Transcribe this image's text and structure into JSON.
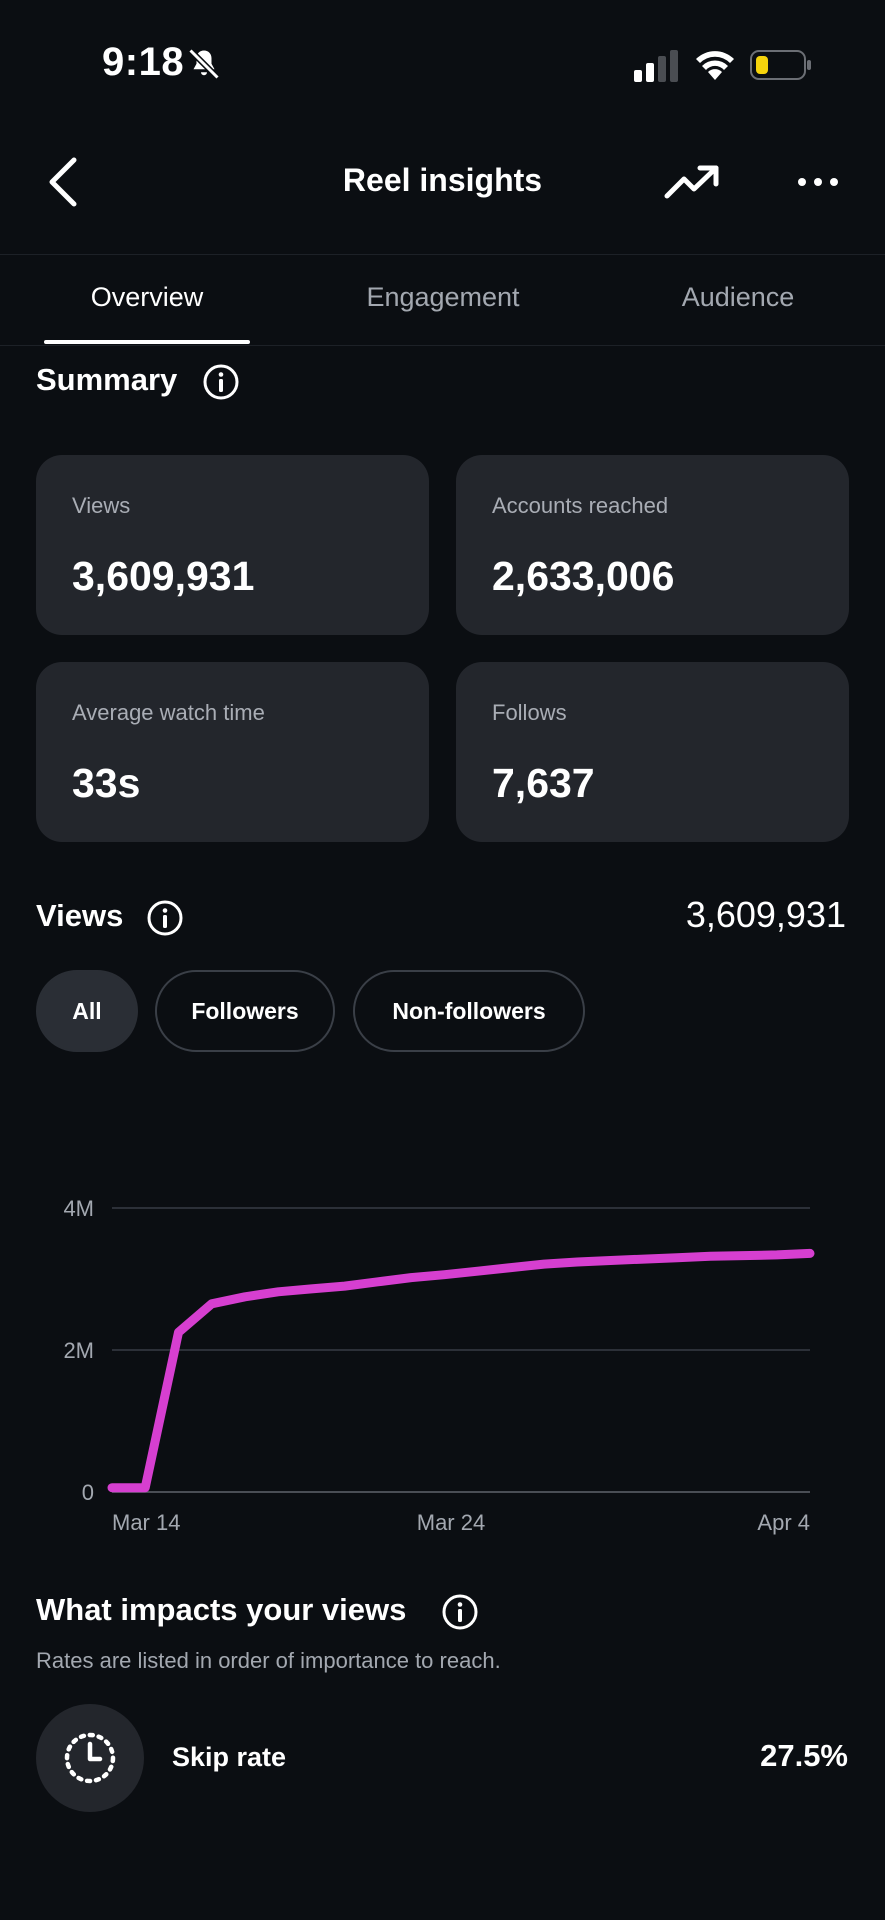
{
  "status_bar": {
    "time": "9:18"
  },
  "header": {
    "title": "Reel insights"
  },
  "tabs": [
    {
      "label": "Overview",
      "active": true
    },
    {
      "label": "Engagement",
      "active": false
    },
    {
      "label": "Audience",
      "active": false
    }
  ],
  "summary": {
    "title": "Summary",
    "cards": [
      {
        "label": "Views",
        "value": "3,609,931"
      },
      {
        "label": "Accounts reached",
        "value": "2,633,006"
      },
      {
        "label": "Average watch time",
        "value": "33s"
      },
      {
        "label": "Follows",
        "value": "7,637"
      }
    ]
  },
  "views_section": {
    "title": "Views",
    "total": "3,609,931",
    "filters": [
      {
        "label": "All",
        "selected": true
      },
      {
        "label": "Followers",
        "selected": false
      },
      {
        "label": "Non-followers",
        "selected": false
      }
    ]
  },
  "chart_data": {
    "type": "line",
    "title": "",
    "xlabel": "",
    "ylabel": "",
    "x_tick_labels": [
      "Mar 14",
      "Mar 24",
      "Apr 4"
    ],
    "y_tick_labels": [
      "0",
      "2M",
      "4M"
    ],
    "ylim": [
      0,
      4000000
    ],
    "grid": true,
    "color": "#d63fd0",
    "series": [
      {
        "x": [
          0,
          1,
          2,
          3,
          4,
          5,
          6,
          7,
          8,
          9,
          10,
          11,
          12,
          13,
          14,
          15,
          16,
          17,
          18,
          19,
          20,
          21
        ],
        "values": [
          60000,
          60000,
          2250000,
          2650000,
          2750000,
          2820000,
          2860000,
          2900000,
          2960000,
          3020000,
          3060000,
          3110000,
          3160000,
          3210000,
          3240000,
          3260000,
          3280000,
          3300000,
          3320000,
          3330000,
          3340000,
          3360000
        ]
      }
    ]
  },
  "impacts": {
    "title": "What impacts your views",
    "subtitle": "Rates are listed in order of importance to reach.",
    "metrics": [
      {
        "label": "Skip rate",
        "value": "27.5%"
      }
    ]
  },
  "icons": {
    "bell": "bell-slash-icon",
    "back": "chevron-left-icon",
    "trend": "trending-up-icon",
    "more": "more-horizontal-icon",
    "info": "info-icon",
    "skip": "clock-dashed-icon"
  }
}
